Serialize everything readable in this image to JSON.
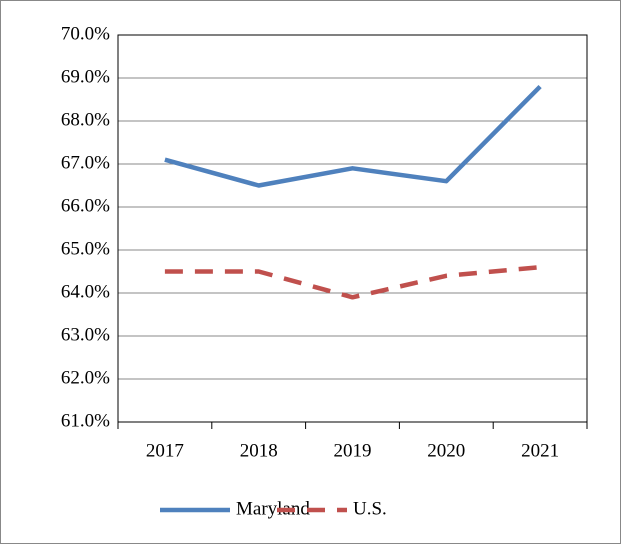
{
  "chart_data": {
    "type": "line",
    "categories": [
      "2017",
      "2018",
      "2019",
      "2020",
      "2021"
    ],
    "series": [
      {
        "name": "Maryland",
        "color": "#4f81bd",
        "dash": false,
        "values": [
          67.1,
          66.5,
          66.9,
          66.6,
          68.8
        ]
      },
      {
        "name": "U.S.",
        "color": "#c0504d",
        "dash": true,
        "values": [
          64.5,
          64.5,
          63.9,
          64.4,
          64.6
        ]
      }
    ],
    "ylim": [
      61,
      70
    ],
    "yticks": [
      {
        "value": 61,
        "label": "61.0%"
      },
      {
        "value": 62,
        "label": "62.0%"
      },
      {
        "value": 63,
        "label": "63.0%"
      },
      {
        "value": 64,
        "label": "64.0%"
      },
      {
        "value": 65,
        "label": "65.0%"
      },
      {
        "value": 66,
        "label": "66.0%"
      },
      {
        "value": 67,
        "label": "67.0%"
      },
      {
        "value": 68,
        "label": "68.0%"
      },
      {
        "value": 69,
        "label": "69.0%"
      },
      {
        "value": 70,
        "label": "70.0%"
      }
    ],
    "grid": true,
    "legend": "bottom"
  }
}
